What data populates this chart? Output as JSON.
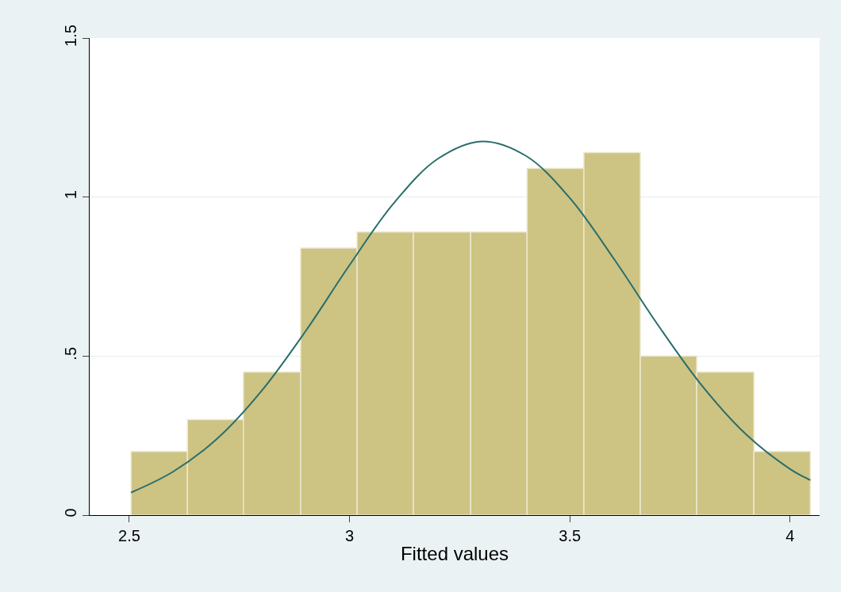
{
  "chart_data": {
    "type": "histogram",
    "xlabel": "Fitted values",
    "color": "#cdc383",
    "bins": [
      2.504,
      2.632,
      2.759,
      2.889,
      3.017,
      3.145,
      3.275,
      3.403,
      3.532,
      3.66,
      3.788,
      3.918,
      4.046
    ],
    "values": [
      0.2,
      0.3,
      0.45,
      0.84,
      0.89,
      0.89,
      0.89,
      1.09,
      1.14,
      0.5,
      0.45,
      0.2
    ],
    "series": [
      {
        "type": "line",
        "color": "#2a6e6a",
        "line_style": "solid",
        "marker": "none",
        "x": [
          2.504,
          2.6,
          2.7,
          2.8,
          2.9,
          3.0,
          3.1,
          3.2,
          3.3,
          3.4,
          3.5,
          3.6,
          3.7,
          3.8,
          3.9,
          4.0,
          4.046
        ],
        "values": [
          0.071,
          0.137,
          0.241,
          0.39,
          0.578,
          0.786,
          0.98,
          1.12,
          1.175,
          1.13,
          0.997,
          0.806,
          0.598,
          0.407,
          0.254,
          0.145,
          0.11
        ]
      }
    ],
    "xlim": [
      2.41,
      4.067
    ],
    "xticks": [
      {
        "value": 2.5,
        "label": "2.5"
      },
      3,
      {
        "value": 3.5,
        "label": "3.5"
      },
      4
    ],
    "ylim": [
      0,
      1.5
    ],
    "yticks": [
      0,
      {
        "value": 0.5,
        "label": ".5"
      },
      1,
      {
        "value": 1.5,
        "label": "1.5"
      }
    ],
    "grid": "y"
  }
}
